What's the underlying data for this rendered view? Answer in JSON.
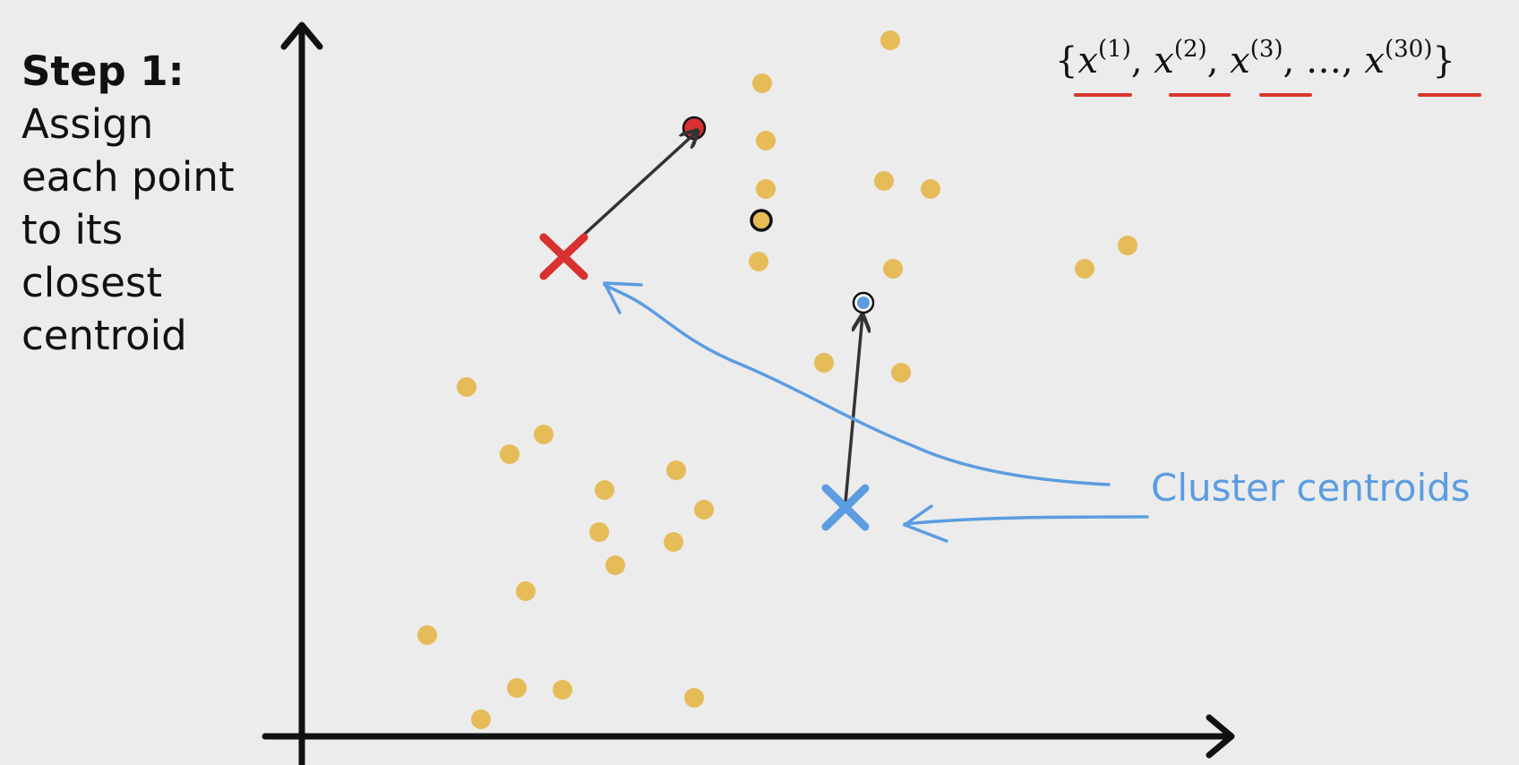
{
  "caption": {
    "step": "Step 1:",
    "lines": [
      "Assign",
      "each point",
      "to its",
      "closest",
      "centroid"
    ]
  },
  "notation": {
    "open": "{",
    "x": "x",
    "sup1": "(1)",
    "sup2": "(2)",
    "sup3": "(3)",
    "ellipsis": "…",
    "sup30": "(30)",
    "comma": ",",
    "close": "}"
  },
  "annotation": {
    "label": "Cluster centroids"
  },
  "colors": {
    "background": "#ececec",
    "point": "#e6bc59",
    "red_centroid": "#d93030",
    "blue_centroid": "#5b9de0",
    "axis": "#111111",
    "underline": "#d9352b"
  },
  "icons": {
    "red_centroid": "x-mark-icon",
    "blue_centroid": "x-mark-icon"
  }
}
